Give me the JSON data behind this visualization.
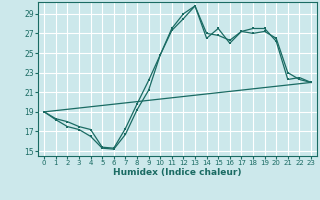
{
  "xlabel": "Humidex (Indice chaleur)",
  "bg_color": "#cce8eb",
  "grid_color": "#ffffff",
  "line_color": "#1a6b63",
  "xlim": [
    -0.5,
    23.5
  ],
  "ylim": [
    14.5,
    30.2
  ],
  "xticks": [
    0,
    1,
    2,
    3,
    4,
    5,
    6,
    7,
    8,
    9,
    10,
    11,
    12,
    13,
    14,
    15,
    16,
    17,
    18,
    19,
    20,
    21,
    22,
    23
  ],
  "yticks": [
    15,
    17,
    19,
    21,
    23,
    25,
    27,
    29
  ],
  "line1_x": [
    0,
    1,
    2,
    3,
    4,
    5,
    6,
    7,
    8,
    9,
    10,
    11,
    12,
    13,
    14,
    15,
    16,
    17,
    18,
    19,
    20,
    21,
    22,
    23
  ],
  "line1_y": [
    19.0,
    18.2,
    17.5,
    17.2,
    16.5,
    15.3,
    15.2,
    16.7,
    19.2,
    21.2,
    24.8,
    27.3,
    28.5,
    29.8,
    26.5,
    27.5,
    26.0,
    27.2,
    27.0,
    27.2,
    26.5,
    23.0,
    22.3,
    22.0
  ],
  "line2_x": [
    0,
    1,
    2,
    3,
    4,
    5,
    6,
    7,
    8,
    9,
    10,
    11,
    12,
    13,
    14,
    15,
    16,
    17,
    18,
    19,
    20,
    21,
    22,
    23
  ],
  "line2_y": [
    19.0,
    18.3,
    18.0,
    17.5,
    17.2,
    15.4,
    15.3,
    17.3,
    19.8,
    22.2,
    24.8,
    27.5,
    29.0,
    29.8,
    27.0,
    26.8,
    26.3,
    27.2,
    27.5,
    27.5,
    26.2,
    22.3,
    22.5,
    22.0
  ],
  "line3_x": [
    0,
    23
  ],
  "line3_y": [
    19.0,
    22.0
  ]
}
